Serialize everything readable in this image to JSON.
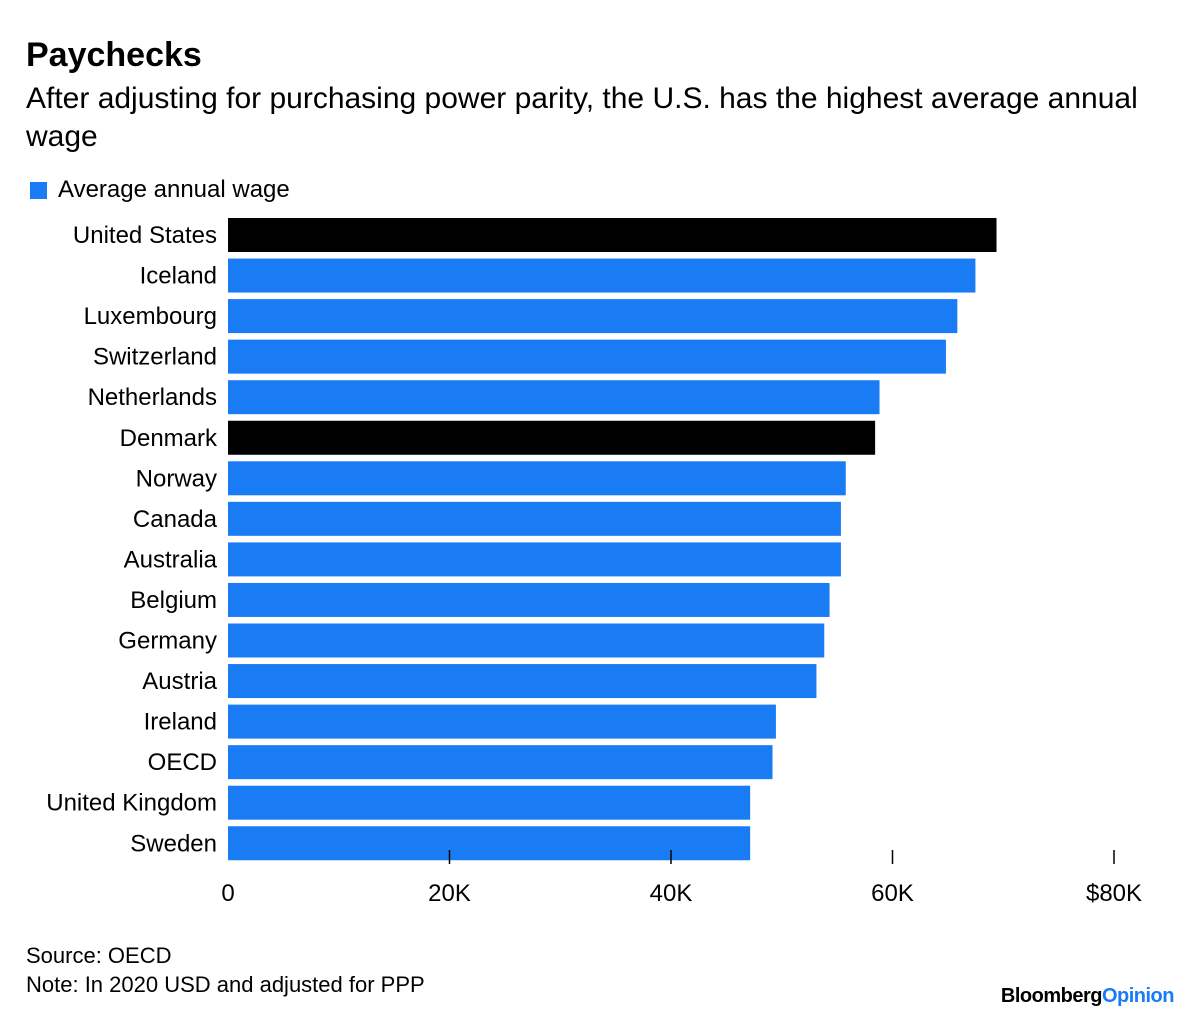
{
  "header": {
    "title": "Paychecks",
    "subtitle": "After adjusting for purchasing power parity, the U.S. has the highest average annual wage"
  },
  "legend": {
    "label": "Average annual wage",
    "color": "#1a7cf5"
  },
  "colors": {
    "bar": "#1a7cf5",
    "highlight": "#000000"
  },
  "chart_data": {
    "type": "bar",
    "orientation": "horizontal",
    "categories": [
      "United States",
      "Iceland",
      "Luxembourg",
      "Switzerland",
      "Netherlands",
      "Denmark",
      "Norway",
      "Canada",
      "Australia",
      "Belgium",
      "Germany",
      "Austria",
      "Ireland",
      "OECD",
      "United Kingdom",
      "Sweden"
    ],
    "values": [
      69392,
      67488,
      65854,
      64824,
      58828,
      58430,
      55780,
      55342,
      55342,
      54317,
      53838,
      53132,
      49474,
      49165,
      47147,
      47147
    ],
    "highlighted": [
      "United States",
      "Denmark"
    ],
    "series": [
      {
        "name": "Average annual wage",
        "values": [
          69392,
          67488,
          65854,
          64824,
          58828,
          58430,
          55780,
          55342,
          55342,
          54317,
          53838,
          53132,
          49474,
          49165,
          47147,
          47147
        ]
      }
    ],
    "xlim": [
      0,
      80000
    ],
    "xticks": [
      0,
      20000,
      40000,
      60000,
      80000
    ],
    "xtick_labels": [
      "0",
      "20K",
      "40K",
      "60K",
      "$80K"
    ],
    "grid": false,
    "legend_position": "top-left"
  },
  "footer": {
    "source": "Source: OECD",
    "note": "Note: In 2020 USD and adjusted for PPP"
  },
  "brand": {
    "part1": "Bloomberg",
    "part2": "Opinion"
  }
}
